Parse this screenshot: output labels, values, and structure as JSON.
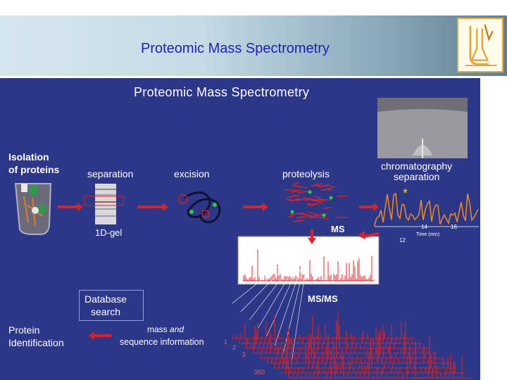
{
  "header": {
    "title": "Proteomic Mass Spectrometry",
    "logo_icon": "lab-glassware-logo-icon"
  },
  "diagram": {
    "title": "Proteomic Mass Spectrometry",
    "isolation_line1": "Isolation",
    "isolation_line2": "of proteins",
    "separation": "separation",
    "excision": "excision",
    "proteolysis": "proteolysis",
    "chromatography_line1": "chromatography",
    "chromatography_line2": "separation",
    "gel_label": "1D-gel",
    "ms_label": "MS",
    "msms_label": "MS/MS",
    "database_line1": "Database",
    "database_line2": "search",
    "protein_id_line1": "Protein",
    "protein_id_line2": "Identification",
    "mass_prefix": "mass ",
    "mass_emph": "and",
    "sequence_info": "sequence information",
    "time_axis_label": "Time (min)",
    "time_ticks": [
      "14",
      "16",
      "12"
    ],
    "spectrum_index_labels": [
      "1",
      "2",
      "3",
      "350"
    ]
  },
  "colors": {
    "panel_background": "#2c3787",
    "arrow_red": "#d8232a",
    "header_title": "#1f1fb0",
    "chromatogram_orange": "#f08a24"
  }
}
